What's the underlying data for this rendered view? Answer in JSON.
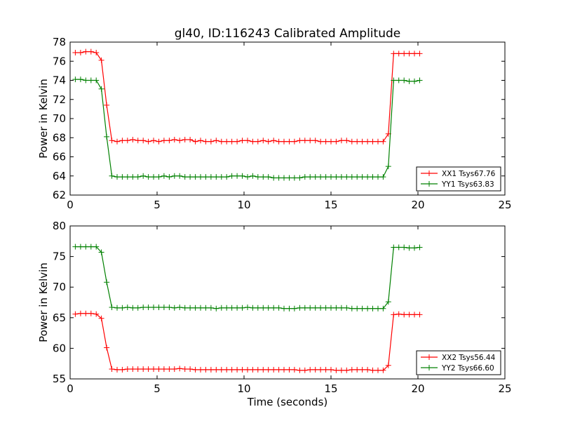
{
  "title": "gl40, ID:116243 Calibrated Amplitude",
  "xlabel": "Time (seconds)",
  "chart_data": [
    {
      "type": "line",
      "ylabel": "Power in Kelvin",
      "xlim": [
        0,
        25
      ],
      "ylim": [
        62,
        78
      ],
      "xticks": [
        0,
        5,
        10,
        15,
        20,
        25
      ],
      "yticks": [
        62,
        64,
        66,
        68,
        70,
        72,
        74,
        76,
        78
      ],
      "legend_location": "lower-right",
      "x": [
        0.3,
        0.6,
        0.9,
        1.2,
        1.5,
        1.8,
        2.1,
        2.4,
        2.7,
        3.0,
        3.3,
        3.6,
        3.9,
        4.2,
        4.5,
        4.8,
        5.1,
        5.4,
        5.7,
        6.0,
        6.3,
        6.6,
        6.9,
        7.2,
        7.5,
        7.8,
        8.1,
        8.4,
        8.7,
        9.0,
        9.3,
        9.6,
        9.9,
        10.2,
        10.5,
        10.8,
        11.1,
        11.4,
        11.7,
        12.0,
        12.3,
        12.6,
        12.9,
        13.2,
        13.5,
        13.8,
        14.1,
        14.4,
        14.7,
        15.0,
        15.3,
        15.6,
        15.9,
        16.2,
        16.5,
        16.8,
        17.1,
        17.4,
        17.7,
        18.0,
        18.3,
        18.6,
        18.9,
        19.2,
        19.5,
        19.8,
        20.1
      ],
      "series": [
        {
          "name": "XX1 Tsys67.76",
          "color": "#ff0000",
          "values": [
            76.9,
            76.9,
            77.0,
            77.0,
            76.9,
            76.1,
            71.4,
            67.7,
            67.6,
            67.7,
            67.7,
            67.8,
            67.7,
            67.7,
            67.6,
            67.7,
            67.6,
            67.7,
            67.7,
            67.8,
            67.7,
            67.8,
            67.8,
            67.6,
            67.7,
            67.6,
            67.6,
            67.7,
            67.6,
            67.6,
            67.6,
            67.6,
            67.7,
            67.7,
            67.6,
            67.6,
            67.7,
            67.6,
            67.7,
            67.6,
            67.6,
            67.6,
            67.6,
            67.7,
            67.7,
            67.7,
            67.7,
            67.6,
            67.6,
            67.6,
            67.6,
            67.7,
            67.7,
            67.6,
            67.6,
            67.6,
            67.6,
            67.6,
            67.6,
            67.6,
            68.4,
            76.8,
            76.8,
            76.8,
            76.8,
            76.8,
            76.8
          ]
        },
        {
          "name": "YY1 Tsys63.83",
          "color": "#008000",
          "values": [
            74.1,
            74.1,
            74.0,
            74.0,
            74.0,
            73.1,
            68.1,
            64.0,
            63.9,
            63.9,
            63.9,
            63.9,
            63.9,
            64.0,
            63.9,
            63.9,
            63.9,
            64.0,
            63.9,
            64.0,
            64.0,
            63.9,
            63.9,
            63.9,
            63.9,
            63.9,
            63.9,
            63.9,
            63.9,
            63.9,
            64.0,
            64.0,
            64.0,
            63.9,
            64.0,
            63.9,
            63.9,
            63.9,
            63.8,
            63.8,
            63.8,
            63.8,
            63.8,
            63.8,
            63.9,
            63.9,
            63.9,
            63.9,
            63.9,
            63.9,
            63.9,
            63.9,
            63.9,
            63.9,
            63.9,
            63.9,
            63.9,
            63.9,
            63.9,
            63.9,
            65.0,
            74.0,
            74.0,
            74.0,
            73.9,
            73.9,
            74.0
          ]
        }
      ]
    },
    {
      "type": "line",
      "ylabel": "Power in Kelvin",
      "xlabel": "Time (seconds)",
      "xlim": [
        0,
        25
      ],
      "ylim": [
        55,
        80
      ],
      "xticks": [
        0,
        5,
        10,
        15,
        20,
        25
      ],
      "yticks": [
        55,
        60,
        65,
        70,
        75,
        80
      ],
      "legend_location": "lower-right",
      "x": [
        0.3,
        0.6,
        0.9,
        1.2,
        1.5,
        1.8,
        2.1,
        2.4,
        2.7,
        3.0,
        3.3,
        3.6,
        3.9,
        4.2,
        4.5,
        4.8,
        5.1,
        5.4,
        5.7,
        6.0,
        6.3,
        6.6,
        6.9,
        7.2,
        7.5,
        7.8,
        8.1,
        8.4,
        8.7,
        9.0,
        9.3,
        9.6,
        9.9,
        10.2,
        10.5,
        10.8,
        11.1,
        11.4,
        11.7,
        12.0,
        12.3,
        12.6,
        12.9,
        13.2,
        13.5,
        13.8,
        14.1,
        14.4,
        14.7,
        15.0,
        15.3,
        15.6,
        15.9,
        16.2,
        16.5,
        16.8,
        17.1,
        17.4,
        17.7,
        18.0,
        18.3,
        18.6,
        18.9,
        19.2,
        19.5,
        19.8,
        20.1
      ],
      "series": [
        {
          "name": "XX2 Tsys56.44",
          "color": "#ff0000",
          "values": [
            65.6,
            65.7,
            65.7,
            65.7,
            65.6,
            64.9,
            60.1,
            56.6,
            56.5,
            56.5,
            56.6,
            56.6,
            56.6,
            56.6,
            56.6,
            56.6,
            56.6,
            56.6,
            56.6,
            56.6,
            56.7,
            56.6,
            56.6,
            56.5,
            56.5,
            56.5,
            56.5,
            56.5,
            56.5,
            56.5,
            56.5,
            56.5,
            56.5,
            56.5,
            56.5,
            56.5,
            56.5,
            56.5,
            56.5,
            56.5,
            56.5,
            56.5,
            56.5,
            56.4,
            56.4,
            56.5,
            56.5,
            56.5,
            56.5,
            56.5,
            56.4,
            56.4,
            56.4,
            56.5,
            56.5,
            56.5,
            56.5,
            56.4,
            56.4,
            56.4,
            57.2,
            65.5,
            65.6,
            65.5,
            65.5,
            65.5,
            65.5
          ]
        },
        {
          "name": "YY2 Tsys66.60",
          "color": "#008000",
          "values": [
            76.6,
            76.6,
            76.6,
            76.6,
            76.6,
            75.7,
            70.8,
            66.7,
            66.6,
            66.6,
            66.7,
            66.6,
            66.6,
            66.7,
            66.7,
            66.7,
            66.7,
            66.7,
            66.7,
            66.6,
            66.7,
            66.6,
            66.6,
            66.6,
            66.6,
            66.6,
            66.6,
            66.5,
            66.6,
            66.6,
            66.6,
            66.6,
            66.6,
            66.7,
            66.6,
            66.6,
            66.6,
            66.6,
            66.6,
            66.6,
            66.5,
            66.5,
            66.5,
            66.6,
            66.6,
            66.6,
            66.6,
            66.6,
            66.6,
            66.6,
            66.6,
            66.6,
            66.6,
            66.5,
            66.5,
            66.5,
            66.5,
            66.5,
            66.5,
            66.5,
            67.6,
            76.5,
            76.5,
            76.5,
            76.4,
            76.4,
            76.5
          ]
        }
      ]
    }
  ]
}
